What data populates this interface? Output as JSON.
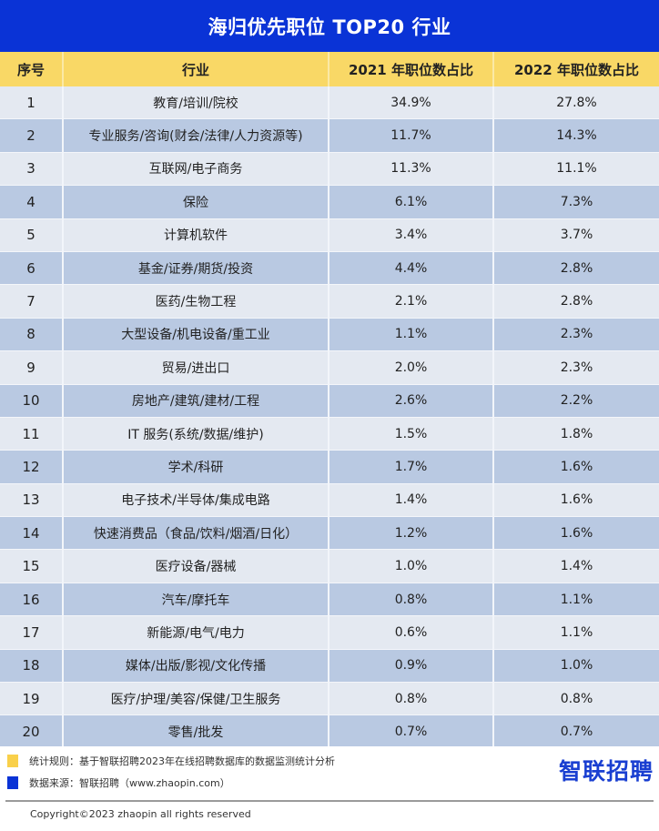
{
  "title": "海归优先职位 TOP20 行业",
  "table": {
    "headers": [
      "序号",
      "行业",
      "2021 年职位数占比",
      "2022 年职位数占比"
    ],
    "rows": [
      {
        "no": "1",
        "industry": "教育/培训/院校",
        "y2021": "34.9%",
        "y2022": "27.8%"
      },
      {
        "no": "2",
        "industry": "专业服务/咨询(财会/法律/人力资源等)",
        "y2021": "11.7%",
        "y2022": "14.3%"
      },
      {
        "no": "3",
        "industry": "互联网/电子商务",
        "y2021": "11.3%",
        "y2022": "11.1%"
      },
      {
        "no": "4",
        "industry": "保险",
        "y2021": "6.1%",
        "y2022": "7.3%"
      },
      {
        "no": "5",
        "industry": "计算机软件",
        "y2021": "3.4%",
        "y2022": "3.7%"
      },
      {
        "no": "6",
        "industry": "基金/证券/期货/投资",
        "y2021": "4.4%",
        "y2022": "2.8%"
      },
      {
        "no": "7",
        "industry": "医药/生物工程",
        "y2021": "2.1%",
        "y2022": "2.8%"
      },
      {
        "no": "8",
        "industry": "大型设备/机电设备/重工业",
        "y2021": "1.1%",
        "y2022": "2.3%"
      },
      {
        "no": "9",
        "industry": "贸易/进出口",
        "y2021": "2.0%",
        "y2022": "2.3%"
      },
      {
        "no": "10",
        "industry": "房地产/建筑/建材/工程",
        "y2021": "2.6%",
        "y2022": "2.2%"
      },
      {
        "no": "11",
        "industry": "IT 服务(系统/数据/维护)",
        "y2021": "1.5%",
        "y2022": "1.8%"
      },
      {
        "no": "12",
        "industry": "学术/科研",
        "y2021": "1.7%",
        "y2022": "1.6%"
      },
      {
        "no": "13",
        "industry": "电子技术/半导体/集成电路",
        "y2021": "1.4%",
        "y2022": "1.6%"
      },
      {
        "no": "14",
        "industry": "快速消费品（食品/饮料/烟酒/日化）",
        "y2021": "1.2%",
        "y2022": "1.6%"
      },
      {
        "no": "15",
        "industry": "医疗设备/器械",
        "y2021": "1.0%",
        "y2022": "1.4%"
      },
      {
        "no": "16",
        "industry": "汽车/摩托车",
        "y2021": "0.8%",
        "y2022": "1.1%"
      },
      {
        "no": "17",
        "industry": "新能源/电气/电力",
        "y2021": "0.6%",
        "y2022": "1.1%"
      },
      {
        "no": "18",
        "industry": "媒体/出版/影视/文化传播",
        "y2021": "0.9%",
        "y2022": "1.0%"
      },
      {
        "no": "19",
        "industry": "医疗/护理/美容/保健/卫生服务",
        "y2021": "0.8%",
        "y2022": "0.8%"
      },
      {
        "no": "20",
        "industry": "零售/批发",
        "y2021": "0.7%",
        "y2022": "0.7%"
      }
    ]
  },
  "footer": {
    "rule_label": "统计规则：基于智联招聘2023年在线招聘数据库的数据监测统计分析",
    "source_label": "数据来源：智联招聘（www.zhaopin.com）",
    "brand": "智联招聘",
    "copyright": "Copyright©2023 zhaopin all rights reserved"
  },
  "colors": {
    "title_bg": "#0a33d6",
    "header_bg": "#f9d866",
    "row_light": "#e4e9f1",
    "row_dark": "#b9c9e2",
    "legend_yellow": "#f9d04a",
    "legend_blue": "#0a33d6",
    "brand_blue": "#1a3fd1"
  },
  "chart_data": {
    "type": "table",
    "title": "海归优先职位 TOP20 行业",
    "columns": [
      "序号",
      "行业",
      "2021 年职位数占比",
      "2022 年职位数占比"
    ],
    "categories": [
      "教育/培训/院校",
      "专业服务/咨询(财会/法律/人力资源等)",
      "互联网/电子商务",
      "保险",
      "计算机软件",
      "基金/证券/期货/投资",
      "医药/生物工程",
      "大型设备/机电设备/重工业",
      "贸易/进出口",
      "房地产/建筑/建材/工程",
      "IT 服务(系统/数据/维护)",
      "学术/科研",
      "电子技术/半导体/集成电路",
      "快速消费品（食品/饮料/烟酒/日化）",
      "医疗设备/器械",
      "汽车/摩托车",
      "新能源/电气/电力",
      "媒体/出版/影视/文化传播",
      "医疗/护理/美容/保健/卫生服务",
      "零售/批发"
    ],
    "series": [
      {
        "name": "2021 年职位数占比",
        "values": [
          34.9,
          11.7,
          11.3,
          6.1,
          3.4,
          4.4,
          2.1,
          1.1,
          2.0,
          2.6,
          1.5,
          1.7,
          1.4,
          1.2,
          1.0,
          0.8,
          0.6,
          0.9,
          0.8,
          0.7
        ]
      },
      {
        "name": "2022 年职位数占比",
        "values": [
          27.8,
          14.3,
          11.1,
          7.3,
          3.7,
          2.8,
          2.8,
          2.3,
          2.3,
          2.2,
          1.8,
          1.6,
          1.6,
          1.6,
          1.4,
          1.1,
          1.1,
          1.0,
          0.8,
          0.7
        ]
      }
    ],
    "unit": "%"
  }
}
